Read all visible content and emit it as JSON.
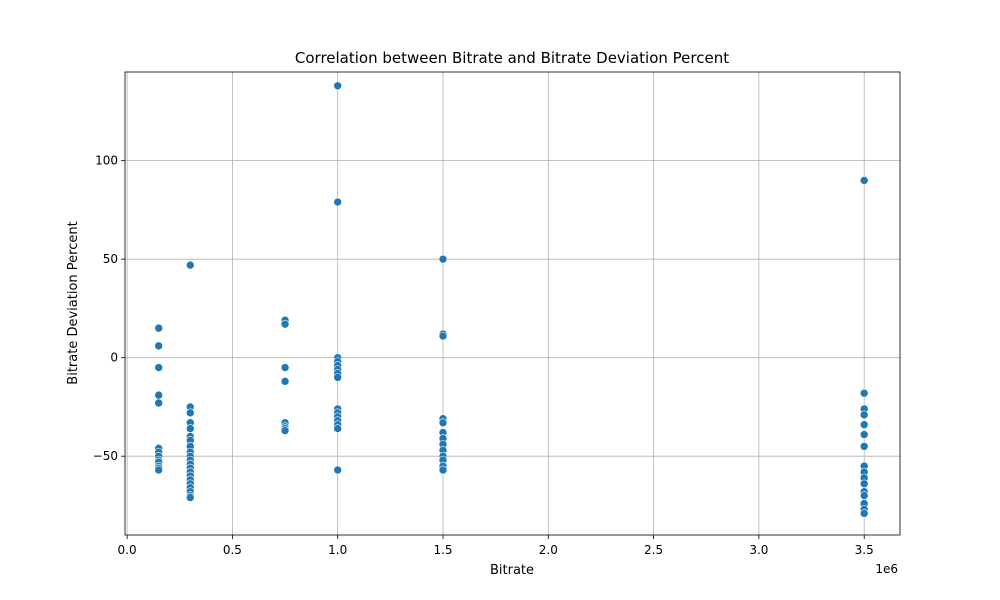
{
  "chart_data": {
    "type": "scatter",
    "title": "Correlation between Bitrate and Bitrate Deviation Percent",
    "xlabel": "Bitrate",
    "ylabel": "Bitrate Deviation Percent",
    "x_offset_text": "1e6",
    "xlim": [
      -0.01,
      3.67
    ],
    "ylim": [
      -90,
      145
    ],
    "xticks": [
      0.0,
      0.5,
      1.0,
      1.5,
      2.0,
      2.5,
      3.0,
      3.5
    ],
    "xtick_labels": [
      "0.0",
      "0.5",
      "1.0",
      "1.5",
      "2.0",
      "2.5",
      "3.0",
      "3.5"
    ],
    "yticks": [
      -50,
      0,
      50,
      100
    ],
    "ytick_labels": [
      "−50",
      "0",
      "50",
      "100"
    ],
    "grid": true,
    "marker_color": "#1f77b4",
    "series": [
      {
        "points": [
          [
            0.15,
            15
          ],
          [
            0.15,
            6
          ],
          [
            0.15,
            -5
          ],
          [
            0.15,
            -19
          ],
          [
            0.15,
            -23
          ],
          [
            0.15,
            -46
          ],
          [
            0.15,
            -48
          ],
          [
            0.15,
            -50
          ],
          [
            0.15,
            -52
          ],
          [
            0.15,
            -53
          ],
          [
            0.15,
            -55
          ],
          [
            0.15,
            -56
          ],
          [
            0.15,
            -57
          ],
          [
            0.3,
            47
          ],
          [
            0.3,
            -25
          ],
          [
            0.3,
            -28
          ],
          [
            0.3,
            -33
          ],
          [
            0.3,
            -36
          ],
          [
            0.3,
            -40
          ],
          [
            0.3,
            -42
          ],
          [
            0.3,
            -45
          ],
          [
            0.3,
            -48
          ],
          [
            0.3,
            -50
          ],
          [
            0.3,
            -52
          ],
          [
            0.3,
            -54
          ],
          [
            0.3,
            -56
          ],
          [
            0.3,
            -58
          ],
          [
            0.3,
            -60
          ],
          [
            0.3,
            -62
          ],
          [
            0.3,
            -64
          ],
          [
            0.3,
            -66
          ],
          [
            0.3,
            -68
          ],
          [
            0.3,
            -70
          ],
          [
            0.3,
            -71
          ],
          [
            0.75,
            19
          ],
          [
            0.75,
            17
          ],
          [
            0.75,
            -5
          ],
          [
            0.75,
            -12
          ],
          [
            0.75,
            -33
          ],
          [
            0.75,
            -35
          ],
          [
            0.75,
            -36
          ],
          [
            0.75,
            -37
          ],
          [
            1.0,
            138
          ],
          [
            1.0,
            79
          ],
          [
            1.0,
            0
          ],
          [
            1.0,
            -2
          ],
          [
            1.0,
            -4
          ],
          [
            1.0,
            -6
          ],
          [
            1.0,
            -8
          ],
          [
            1.0,
            -10
          ],
          [
            1.0,
            -26
          ],
          [
            1.0,
            -28
          ],
          [
            1.0,
            -30
          ],
          [
            1.0,
            -32
          ],
          [
            1.0,
            -34
          ],
          [
            1.0,
            -36
          ],
          [
            1.0,
            -57
          ],
          [
            1.5,
            50
          ],
          [
            1.5,
            12
          ],
          [
            1.5,
            11
          ],
          [
            1.5,
            -31
          ],
          [
            1.5,
            -33
          ],
          [
            1.5,
            -38
          ],
          [
            1.5,
            -41
          ],
          [
            1.5,
            -44
          ],
          [
            1.5,
            -47
          ],
          [
            1.5,
            -50
          ],
          [
            1.5,
            -52
          ],
          [
            1.5,
            -55
          ],
          [
            1.5,
            -57
          ],
          [
            3.5,
            90
          ],
          [
            3.5,
            -18
          ],
          [
            3.5,
            -26
          ],
          [
            3.5,
            -29
          ],
          [
            3.5,
            -34
          ],
          [
            3.5,
            -39
          ],
          [
            3.5,
            -45
          ],
          [
            3.5,
            -55
          ],
          [
            3.5,
            -58
          ],
          [
            3.5,
            -61
          ],
          [
            3.5,
            -64
          ],
          [
            3.5,
            -68
          ],
          [
            3.5,
            -70
          ],
          [
            3.5,
            -74
          ],
          [
            3.5,
            -77
          ],
          [
            3.5,
            -79
          ]
        ]
      }
    ]
  }
}
